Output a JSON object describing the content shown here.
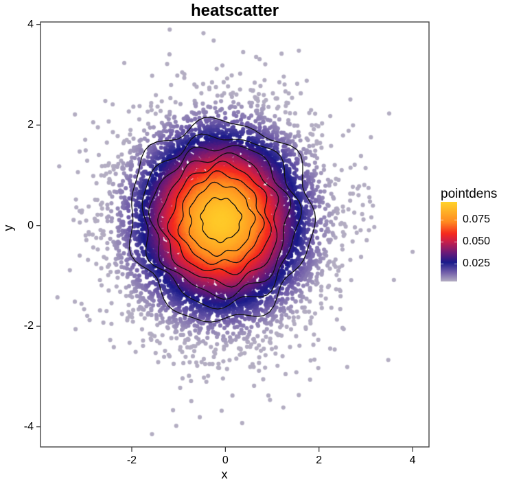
{
  "chart_data": {
    "type": "scatter",
    "title": "heatscatter",
    "xlabel": "x",
    "ylabel": "y",
    "xlim": [
      -3.95,
      4.35
    ],
    "ylim": [
      -4.4,
      4.05
    ],
    "x_ticks": [
      -2,
      0,
      2,
      4
    ],
    "y_ticks": [
      -4,
      -2,
      0,
      2,
      4
    ],
    "grid": false,
    "legend_position": "right",
    "color_variable": "pointdens",
    "color_scale": {
      "title": "pointdens",
      "ticks": [
        {
          "value": 0.075,
          "label": "0.075"
        },
        {
          "value": 0.05,
          "label": "0.050"
        },
        {
          "value": 0.025,
          "label": "0.025"
        }
      ],
      "range": [
        0.005,
        0.095
      ],
      "stops": [
        {
          "pos": 0.0,
          "color": "#B3ADC2"
        },
        {
          "pos": 0.12,
          "color": "#6E5AA8"
        },
        {
          "pos": 0.24,
          "color": "#1A1A8A"
        },
        {
          "pos": 0.36,
          "color": "#6A1A78"
        },
        {
          "pos": 0.5,
          "color": "#C81E4A"
        },
        {
          "pos": 0.6,
          "color": "#F52A1E"
        },
        {
          "pos": 0.75,
          "color": "#FF8A20"
        },
        {
          "pos": 1.0,
          "color": "#FFD32A"
        }
      ]
    },
    "distribution": {
      "description": "bivariate standard normal sample (approx. 10000 points) centred near (0, 0), colored by local point density",
      "n_points": 10000,
      "center": [
        0,
        0
      ],
      "sd": [
        1,
        1
      ]
    },
    "contours": {
      "description": "8 density contour lines, roughly concentric around (-0.1, 0.1)",
      "approx_radii": [
        0.42,
        0.68,
        0.87,
        1.05,
        1.24,
        1.45,
        1.65,
        1.95
      ]
    },
    "notable_outliers": [
      {
        "x": -3.55,
        "y": 1.18
      },
      {
        "x": -1.05,
        "y": -3.98
      },
      {
        "x": -0.25,
        "y": 3.68
      },
      {
        "x": 4.0,
        "y": -0.52
      },
      {
        "x": 3.48,
        "y": -2.67
      },
      {
        "x": -0.08,
        "y": -3.68
      },
      {
        "x": 0.38,
        "y": 3.45
      },
      {
        "x": 1.2,
        "y": 3.42
      },
      {
        "x": 3.6,
        "y": -1.08
      }
    ]
  }
}
